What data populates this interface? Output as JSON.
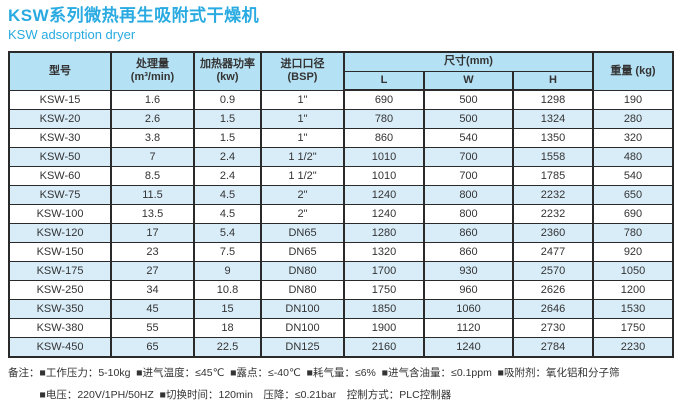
{
  "page": {
    "title": "KSW系列微热再生吸附式干燥机",
    "subtitle": "KSW adsorption  dryer"
  },
  "colors": {
    "accent": "#29abe2",
    "header_bg": "#b5e1f4",
    "row_alt_bg": "#d9edf9",
    "border": "#2a2a2a",
    "text": "#333333"
  },
  "table": {
    "headers": {
      "model": "型号",
      "capacity_l1": "处理量",
      "capacity_l2": "(m³/min)",
      "power_l1": "加热器功率",
      "power_l2": "(kw)",
      "inlet_l1": "进口口径",
      "inlet_l2": "(BSP)",
      "dims": "尺寸(mm)",
      "dim_l": "L",
      "dim_w": "W",
      "dim_h": "H",
      "weight": "重量 (kg)"
    },
    "rows": [
      [
        "KSW-15",
        "1.6",
        "0.9",
        "1\"",
        "690",
        "500",
        "1298",
        "190"
      ],
      [
        "KSW-20",
        "2.6",
        "1.5",
        "1\"",
        "780",
        "500",
        "1324",
        "280"
      ],
      [
        "KSW-30",
        "3.8",
        "1.5",
        "1\"",
        "860",
        "540",
        "1350",
        "320"
      ],
      [
        "KSW-50",
        "7",
        "2.4",
        "1 1/2\"",
        "1010",
        "700",
        "1558",
        "480"
      ],
      [
        "KSW-60",
        "8.5",
        "2.4",
        "1 1/2\"",
        "1010",
        "700",
        "1785",
        "540"
      ],
      [
        "KSW-75",
        "11.5",
        "4.5",
        "2\"",
        "1240",
        "800",
        "2232",
        "650"
      ],
      [
        "KSW-100",
        "13.5",
        "4.5",
        "2\"",
        "1240",
        "800",
        "2232",
        "690"
      ],
      [
        "KSW-120",
        "17",
        "5.4",
        "DN65",
        "1280",
        "860",
        "2360",
        "780"
      ],
      [
        "KSW-150",
        "23",
        "7.5",
        "DN65",
        "1320",
        "860",
        "2477",
        "920"
      ],
      [
        "KSW-175",
        "27",
        "9",
        "DN80",
        "1700",
        "930",
        "2570",
        "1050"
      ],
      [
        "KSW-250",
        "34",
        "10.8",
        "DN80",
        "1750",
        "960",
        "2626",
        "1200"
      ],
      [
        "KSW-350",
        "45",
        "15",
        "DN100",
        "1850",
        "1060",
        "2646",
        "1530"
      ],
      [
        "KSW-380",
        "55",
        "18",
        "DN100",
        "1900",
        "1120",
        "2730",
        "1750"
      ],
      [
        "KSW-450",
        "65",
        "22.5",
        "DN125",
        "2160",
        "1240",
        "2784",
        "2230"
      ]
    ]
  },
  "notes": {
    "label": "备注：",
    "line1": "■工作压力：5-10kg  ■进气温度：≤45℃  ■露点：≤-40℃  ■耗气量：≤6%  ■进气含油量：≤0.1ppm  ■吸附剂：氧化铝和分子筛",
    "line2": "■电压：220V/1PH/50HZ  ■切换时间：120min　压降：≤0.21bar　控制方式：PLC控制器"
  }
}
